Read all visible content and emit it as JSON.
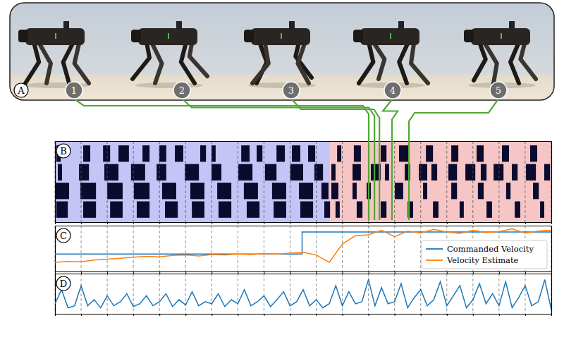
{
  "photo_panel": {
    "annotations": [
      "A"
    ],
    "frames": [
      {
        "label": "1",
        "time": 12.01
      },
      {
        "label": "2",
        "time": 12.23
      },
      {
        "label": "3",
        "time": 12.42
      },
      {
        "label": "4",
        "time": 12.9
      },
      {
        "label": "5",
        "time": 13.55
      }
    ]
  },
  "chart_data": [
    {
      "type": "gantt",
      "annotations": [
        "B"
      ],
      "xlim": [
        0,
        19
      ],
      "xticks": [
        0,
        1,
        2,
        3,
        4,
        5,
        6,
        7,
        8,
        9,
        10,
        11,
        12,
        13,
        14,
        15,
        16,
        17,
        18,
        19
      ],
      "grid": true,
      "tick_labels": false,
      "color": "#0b0b2e",
      "regions": [
        {
          "start": 0,
          "end": 10.53,
          "color": "#c4c4f7"
        },
        {
          "start": 10.53,
          "end": 19,
          "color": "#f6c6c6"
        }
      ],
      "series": [
        {
          "values": [
            [
              0.05,
              0.22
            ],
            [
              1.08,
              1.35
            ],
            [
              1.84,
              2.11
            ],
            [
              2.43,
              2.83
            ],
            [
              3.35,
              3.62
            ],
            [
              3.99,
              4.26
            ],
            [
              4.59,
              4.91
            ],
            [
              5.56,
              5.78
            ],
            [
              5.99,
              6.15
            ],
            [
              7.13,
              7.45
            ],
            [
              7.72,
              7.94
            ],
            [
              8.48,
              8.8
            ],
            [
              9.07,
              9.39
            ],
            [
              9.69,
              9.96
            ],
            [
              10.8,
              10.96
            ],
            [
              11.44,
              11.71
            ],
            [
              12.47,
              12.69
            ],
            [
              13.17,
              13.55
            ],
            [
              14.2,
              14.47
            ],
            [
              15.17,
              15.44
            ],
            [
              16.14,
              16.41
            ],
            [
              17.11,
              17.38
            ],
            [
              18.19,
              18.46
            ]
          ]
        },
        {
          "values": [
            [
              0.11,
              0.27
            ],
            [
              0.92,
              1.3
            ],
            [
              1.89,
              2.43
            ],
            [
              2.91,
              3.45
            ],
            [
              3.89,
              4.26
            ],
            [
              4.97,
              5.51
            ],
            [
              5.99,
              6.37
            ],
            [
              7.02,
              7.56
            ],
            [
              8.04,
              8.48
            ],
            [
              9.01,
              9.5
            ],
            [
              9.93,
              10.26
            ],
            [
              10.58,
              10.74
            ],
            [
              11.39,
              11.71
            ],
            [
              12.09,
              12.47
            ],
            [
              12.63,
              12.79
            ],
            [
              13.39,
              13.6
            ],
            [
              13.93,
              14.25
            ],
            [
              14.41,
              14.63
            ],
            [
              15.06,
              15.39
            ],
            [
              15.71,
              16.09
            ],
            [
              16.3,
              16.52
            ],
            [
              16.79,
              17.17
            ],
            [
              17.49,
              17.71
            ],
            [
              18.03,
              18.41
            ],
            [
              18.73,
              18.95
            ]
          ]
        },
        {
          "values": [
            [
              0,
              0.54
            ],
            [
              0.97,
              1.57
            ],
            [
              2.0,
              2.59
            ],
            [
              3.02,
              3.62
            ],
            [
              4.1,
              4.64
            ],
            [
              5.18,
              5.72
            ],
            [
              6.21,
              6.75
            ],
            [
              7.23,
              7.77
            ],
            [
              8.31,
              8.85
            ],
            [
              9.34,
              9.88
            ],
            [
              10.2,
              10.47
            ],
            [
              10.58,
              10.85
            ],
            [
              11.39,
              11.55
            ],
            [
              11.93,
              12.09
            ],
            [
              13.01,
              13.33
            ],
            [
              14.09,
              14.25
            ],
            [
              15.17,
              15.39
            ],
            [
              16.19,
              16.41
            ],
            [
              17.27,
              17.44
            ],
            [
              18.3,
              18.52
            ]
          ]
        },
        {
          "values": [
            [
              0.05,
              0.49
            ],
            [
              1.08,
              1.57
            ],
            [
              2.11,
              2.59
            ],
            [
              3.13,
              3.62
            ],
            [
              4.21,
              4.7
            ],
            [
              5.24,
              5.72
            ],
            [
              6.26,
              6.75
            ],
            [
              7.34,
              7.83
            ],
            [
              8.37,
              8.85
            ],
            [
              9.39,
              9.88
            ],
            [
              10.31,
              10.53
            ],
            [
              10.74,
              10.9
            ],
            [
              11.55,
              11.77
            ],
            [
              12.47,
              12.69
            ],
            [
              13.5,
              13.71
            ],
            [
              14.47,
              14.68
            ],
            [
              15.49,
              15.65
            ],
            [
              16.52,
              16.73
            ],
            [
              17.6,
              17.81
            ],
            [
              18.57,
              18.73
            ]
          ]
        }
      ]
    },
    {
      "type": "line",
      "annotations": [
        "C"
      ],
      "xlim": [
        0,
        19
      ],
      "ylim": [
        0,
        1
      ],
      "xticks": [
        0,
        1,
        2,
        3,
        4,
        5,
        6,
        7,
        8,
        9,
        10,
        11,
        12,
        13,
        14,
        15,
        16,
        17,
        18,
        19
      ],
      "yticks": [],
      "grid": true,
      "tick_labels": false,
      "legend": "lower right",
      "series": [
        {
          "name": "Commanded Velocity",
          "color": "#1f77b4",
          "x": [
            0,
            9.46,
            9.46,
            19
          ],
          "values": [
            0.38,
            0.38,
            0.86,
            0.86
          ]
        },
        {
          "name": "Velocity Estimate",
          "color": "#ff7f0e",
          "x": [
            0,
            0.5,
            1,
            1.5,
            2,
            2.5,
            3,
            3.5,
            4,
            4.5,
            5,
            5.5,
            6,
            6.5,
            7,
            7.5,
            8,
            8.5,
            9,
            9.5,
            10,
            10.5,
            11,
            11.5,
            12,
            12.5,
            13,
            13.5,
            14,
            14.5,
            15,
            15.5,
            16,
            16.5,
            17,
            17.5,
            18,
            18.5,
            19
          ],
          "values": [
            0.2,
            0.22,
            0.21,
            0.25,
            0.27,
            0.29,
            0.31,
            0.33,
            0.32,
            0.35,
            0.36,
            0.34,
            0.37,
            0.36,
            0.38,
            0.37,
            0.39,
            0.38,
            0.4,
            0.42,
            0.36,
            0.2,
            0.6,
            0.78,
            0.8,
            0.9,
            0.76,
            0.88,
            0.84,
            0.92,
            0.86,
            0.83,
            0.9,
            0.85,
            0.87,
            0.93,
            0.84,
            0.88,
            0.9
          ]
        }
      ]
    },
    {
      "type": "line",
      "annotations": [
        "D"
      ],
      "xlim": [
        0,
        19
      ],
      "ylim": [
        0,
        1
      ],
      "xticks": [
        0,
        1,
        2,
        3,
        4,
        5,
        6,
        7,
        8,
        9,
        10,
        11,
        12,
        13,
        14,
        15,
        16,
        17,
        18,
        19
      ],
      "yticks": [],
      "grid": true,
      "tick_labels": false,
      "series": [
        {
          "color": "#1f77b4",
          "x": [
            0,
            0.25,
            0.5,
            0.75,
            1,
            1.25,
            1.5,
            1.75,
            2,
            2.25,
            2.5,
            2.75,
            3,
            3.25,
            3.5,
            3.75,
            4,
            4.25,
            4.5,
            4.75,
            5,
            5.25,
            5.5,
            5.75,
            6,
            6.25,
            6.5,
            6.75,
            7,
            7.25,
            7.5,
            7.75,
            8,
            8.25,
            8.5,
            8.75,
            9,
            9.25,
            9.5,
            9.75,
            10,
            10.25,
            10.5,
            10.75,
            11,
            11.25,
            11.5,
            11.75,
            12,
            12.25,
            12.5,
            12.75,
            13,
            13.25,
            13.5,
            13.75,
            14,
            14.25,
            14.5,
            14.75,
            15,
            15.25,
            15.5,
            15.75,
            16,
            16.25,
            16.5,
            16.75,
            17,
            17.25,
            17.5,
            17.75,
            18,
            18.25,
            18.5,
            18.75,
            19
          ],
          "values": [
            0.25,
            0.6,
            0.15,
            0.2,
            0.7,
            0.2,
            0.35,
            0.15,
            0.45,
            0.2,
            0.3,
            0.5,
            0.18,
            0.25,
            0.45,
            0.2,
            0.3,
            0.5,
            0.18,
            0.35,
            0.22,
            0.55,
            0.2,
            0.3,
            0.25,
            0.5,
            0.18,
            0.35,
            0.25,
            0.6,
            0.2,
            0.3,
            0.45,
            0.18,
            0.35,
            0.55,
            0.2,
            0.3,
            0.6,
            0.2,
            0.35,
            0.15,
            0.25,
            0.7,
            0.2,
            0.55,
            0.25,
            0.3,
            0.85,
            0.2,
            0.65,
            0.25,
            0.3,
            0.75,
            0.15,
            0.4,
            0.6,
            0.2,
            0.35,
            0.8,
            0.2,
            0.45,
            0.7,
            0.15,
            0.35,
            0.75,
            0.25,
            0.5,
            0.2,
            0.8,
            0.15,
            0.4,
            0.7,
            0.2,
            0.3,
            0.85,
            0.1
          ]
        }
      ]
    }
  ]
}
